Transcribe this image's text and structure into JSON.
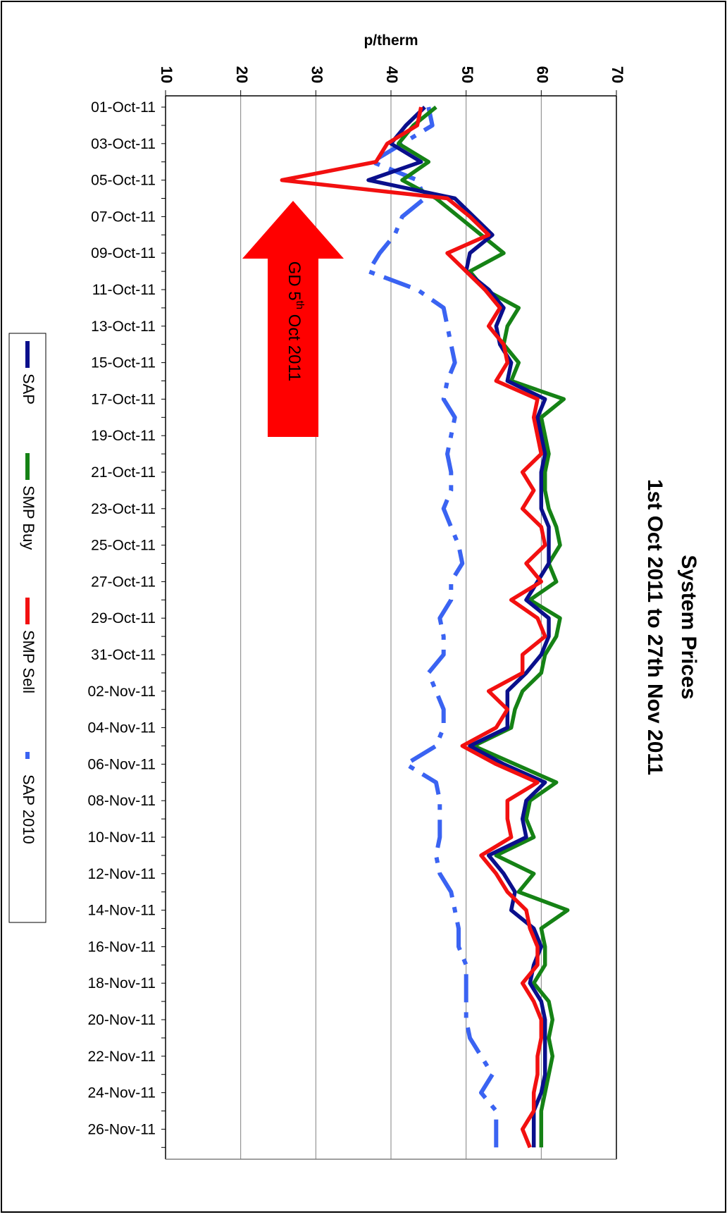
{
  "chart_data": {
    "type": "line",
    "title": "System Prices",
    "subtitle": "1st Oct 2011 to 27th Nov 2011",
    "ylabel": "p/therm",
    "ylim": [
      10,
      70
    ],
    "yticks": [
      "10",
      "20",
      "30",
      "40",
      "50",
      "60",
      "70"
    ],
    "grid": true,
    "legend_position": "left",
    "orientation": "rotated 90 degrees clockwise",
    "categories": [
      "01-Oct-11",
      "02-Oct-11",
      "03-Oct-11",
      "04-Oct-11",
      "05-Oct-11",
      "06-Oct-11",
      "07-Oct-11",
      "08-Oct-11",
      "09-Oct-11",
      "10-Oct-11",
      "11-Oct-11",
      "12-Oct-11",
      "13-Oct-11",
      "14-Oct-11",
      "15-Oct-11",
      "16-Oct-11",
      "17-Oct-11",
      "18-Oct-11",
      "19-Oct-11",
      "20-Oct-11",
      "21-Oct-11",
      "22-Oct-11",
      "23-Oct-11",
      "24-Oct-11",
      "25-Oct-11",
      "26-Oct-11",
      "27-Oct-11",
      "28-Oct-11",
      "29-Oct-11",
      "30-Oct-11",
      "31-Oct-11",
      "01-Nov-11",
      "02-Nov-11",
      "03-Nov-11",
      "04-Nov-11",
      "05-Nov-11",
      "06-Nov-11",
      "07-Nov-11",
      "08-Nov-11",
      "09-Nov-11",
      "10-Nov-11",
      "11-Nov-11",
      "12-Nov-11",
      "13-Nov-11",
      "14-Nov-11",
      "15-Nov-11",
      "16-Nov-11",
      "17-Nov-11",
      "18-Nov-11",
      "19-Nov-11",
      "20-Nov-11",
      "21-Nov-11",
      "22-Nov-11",
      "23-Nov-11",
      "24-Nov-11",
      "25-Nov-11",
      "26-Nov-11",
      "27-Nov-11"
    ],
    "tick_labels": [
      "01-Oct-11",
      "03-Oct-11",
      "05-Oct-11",
      "07-Oct-11",
      "09-Oct-11",
      "11-Oct-11",
      "13-Oct-11",
      "15-Oct-11",
      "17-Oct-11",
      "19-Oct-11",
      "21-Oct-11",
      "23-Oct-11",
      "25-Oct-11",
      "27-Oct-11",
      "29-Oct-11",
      "31-Oct-11",
      "02-Nov-11",
      "04-Nov-11",
      "06-Nov-11",
      "08-Nov-11",
      "10-Nov-11",
      "12-Nov-11",
      "14-Nov-11",
      "16-Nov-11",
      "18-Nov-11",
      "20-Nov-11",
      "22-Nov-11",
      "24-Nov-11",
      "26-Nov-11"
    ],
    "series": [
      {
        "name": "SAP",
        "color": "#0a0f8c",
        "dash": "solid",
        "values": [
          44.5,
          42.0,
          40.0,
          44.0,
          37.0,
          48.5,
          51.0,
          53.5,
          50.5,
          50.0,
          53.0,
          55.0,
          54.0,
          54.5,
          56.0,
          55.5,
          60.5,
          59.5,
          60.0,
          60.5,
          60.0,
          60.0,
          60.0,
          61.0,
          61.0,
          61.0,
          59.5,
          58.0,
          61.0,
          61.0,
          60.0,
          58.0,
          55.5,
          55.5,
          55.5,
          50.5,
          55.0,
          60.5,
          58.0,
          57.5,
          58.0,
          53.0,
          55.0,
          56.5,
          56.0,
          59.0,
          60.0,
          59.0,
          58.5,
          60.0,
          60.5,
          60.5,
          60.5,
          60.5,
          60.0,
          59.0,
          59.0,
          59.0
        ]
      },
      {
        "name": "SMP Buy",
        "color": "#158215",
        "dash": "solid",
        "values": [
          46.0,
          43.0,
          41.0,
          45.0,
          41.5,
          46.0,
          49.0,
          52.0,
          55.0,
          50.5,
          52.5,
          57.0,
          55.5,
          55.0,
          57.0,
          56.0,
          63.0,
          60.0,
          60.5,
          61.0,
          60.5,
          60.5,
          61.0,
          62.0,
          62.5,
          61.0,
          62.0,
          58.5,
          62.5,
          62.0,
          60.5,
          60.0,
          57.5,
          56.5,
          56.0,
          51.0,
          56.5,
          62.0,
          58.5,
          58.0,
          59.0,
          54.0,
          59.0,
          57.0,
          63.5,
          60.0,
          60.5,
          60.5,
          59.0,
          61.0,
          61.5,
          61.0,
          61.5,
          61.0,
          60.5,
          60.0,
          60.0,
          60.0
        ]
      },
      {
        "name": "SMP Sell",
        "color": "#f21010",
        "dash": "solid",
        "values": [
          44.0,
          43.5,
          39.5,
          38.0,
          25.5,
          47.5,
          50.5,
          53.0,
          47.5,
          50.0,
          52.5,
          54.5,
          53.0,
          55.0,
          55.5,
          54.0,
          59.5,
          59.0,
          59.5,
          60.0,
          57.5,
          59.0,
          57.5,
          60.0,
          60.5,
          58.0,
          60.0,
          56.0,
          59.5,
          60.5,
          57.5,
          57.5,
          53.0,
          55.5,
          54.0,
          49.5,
          54.0,
          59.5,
          55.5,
          55.5,
          56.0,
          52.0,
          54.0,
          55.5,
          58.0,
          58.5,
          59.5,
          59.5,
          57.5,
          59.0,
          60.0,
          60.0,
          59.5,
          59.5,
          59.0,
          59.0,
          57.5,
          58.5
        ]
      },
      {
        "name": "SAP 2010",
        "color": "#3a63f2",
        "dash": "dashdot",
        "values": [
          45.0,
          45.5,
          41.5,
          37.5,
          43.5,
          44.5,
          41.5,
          40.5,
          38.5,
          37.0,
          43.5,
          47.0,
          47.5,
          48.0,
          48.5,
          47.5,
          47.0,
          48.5,
          48.0,
          47.5,
          48.0,
          48.0,
          47.0,
          48.0,
          49.0,
          49.5,
          48.0,
          48.0,
          46.5,
          47.0,
          47.0,
          45.0,
          46.0,
          47.0,
          47.0,
          46.0,
          42.0,
          46.0,
          46.5,
          46.5,
          46.5,
          46.0,
          46.5,
          48.0,
          48.5,
          49.0,
          49.0,
          50.0,
          50.0,
          50.0,
          50.0,
          50.5,
          52.0,
          53.5,
          52.0,
          54.0,
          54.0,
          54.0
        ]
      }
    ],
    "annotation": {
      "text_main": "GD 5",
      "text_sup": "th",
      "text_tail": " Oct 2011",
      "color": "#ff0000"
    }
  }
}
